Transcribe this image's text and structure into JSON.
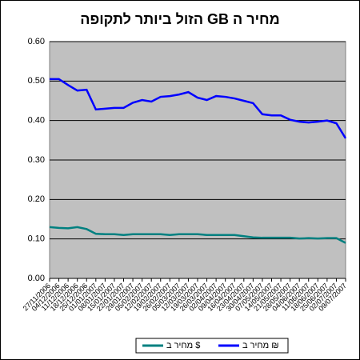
{
  "chart_data": {
    "type": "line",
    "title": "מחיר ה GB הזול ביותר לתקופה",
    "categories": [
      "27/11/2006",
      "04/12/2006",
      "11/12/2006",
      "18/12/2006",
      "25/12/2006",
      "01/01/2007",
      "08/01/2007",
      "15/01/2007",
      "22/01/2007",
      "29/01/2007",
      "05/02/2007",
      "12/02/2007",
      "19/02/2007",
      "26/02/2007",
      "05/03/2007",
      "12/03/2007",
      "19/03/2007",
      "26/03/2007",
      "02/04/2007",
      "09/04/2007",
      "16/04/2007",
      "23/04/2007",
      "30/04/2007",
      "07/05/2007",
      "14/05/2007",
      "21/05/2007",
      "28/05/2007",
      "04/06/2007",
      "11/06/2007",
      "18/06/2007",
      "25/06/2007",
      "02/07/2007",
      "09/07/2007"
    ],
    "series": [
      {
        "name": "מחיר ב $",
        "color": "#008080",
        "values": [
          0.13,
          0.128,
          0.127,
          0.13,
          0.125,
          0.113,
          0.112,
          0.112,
          0.11,
          0.112,
          0.112,
          0.112,
          0.112,
          0.11,
          0.112,
          0.112,
          0.112,
          0.11,
          0.11,
          0.11,
          0.11,
          0.107,
          0.104,
          0.103,
          0.103,
          0.103,
          0.103,
          0.101,
          0.102,
          0.101,
          0.102,
          0.102,
          0.09
        ]
      },
      {
        "name": "מחיר ב ₪",
        "color": "#0000ff",
        "values": [
          0.505,
          0.505,
          0.49,
          0.476,
          0.478,
          0.428,
          0.43,
          0.432,
          0.432,
          0.445,
          0.452,
          0.448,
          0.46,
          0.462,
          0.466,
          0.472,
          0.458,
          0.452,
          0.462,
          0.46,
          0.456,
          0.45,
          0.444,
          0.416,
          0.413,
          0.413,
          0.402,
          0.397,
          0.395,
          0.397,
          0.4,
          0.393,
          0.355
        ]
      }
    ],
    "ylim": [
      0,
      0.6
    ],
    "yticks": [
      {
        "value": 0,
        "label": "0.00"
      },
      {
        "value": 0.1,
        "label": "0.10"
      },
      {
        "value": 0.2,
        "label": "0.20"
      },
      {
        "value": 0.3,
        "label": "0.30"
      },
      {
        "value": 0.4,
        "label": "0.40"
      },
      {
        "value": 0.5,
        "label": "0.50"
      },
      {
        "value": 0.6,
        "label": "0.60"
      }
    ],
    "grid": true
  }
}
